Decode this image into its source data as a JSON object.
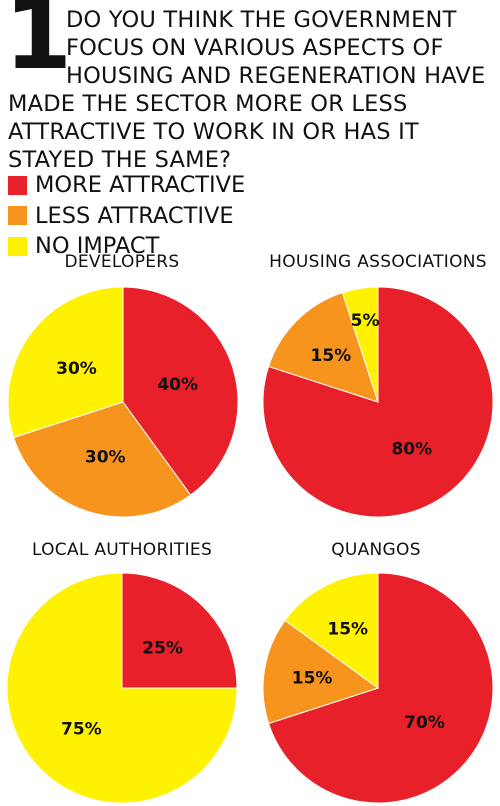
{
  "number": "1",
  "question_lines": [
    "DO YOU THINK THE GOVERNMENT",
    "FOCUS ON VARIOUS ASPECTS OF",
    "HOUSING AND REGENERATION HAVE",
    "MADE THE SECTOR MORE OR LESS",
    "ATTRACTIVE TO WORK IN OR HAS IT",
    "STAYED THE SAME?"
  ],
  "legend": [
    {
      "label": "MORE ATTRACTIVE",
      "color": "#e8202a"
    },
    {
      "label": "LESS ATTRACTIVE",
      "color": "#f7941d"
    },
    {
      "label": "NO IMPACT",
      "color": "#fff200"
    }
  ],
  "chart_data": [
    {
      "type": "pie",
      "title": "DEVELOPERS",
      "slices": [
        {
          "name": "MORE ATTRACTIVE",
          "value": 40,
          "label": "40%",
          "color": "#e8202a"
        },
        {
          "name": "LESS ATTRACTIVE",
          "value": 30,
          "label": "30%",
          "color": "#f7941d"
        },
        {
          "name": "NO IMPACT",
          "value": 30,
          "label": "30%",
          "color": "#fff200"
        }
      ]
    },
    {
      "type": "pie",
      "title": "HOUSING ASSOCIATIONS",
      "slices": [
        {
          "name": "MORE ATTRACTIVE",
          "value": 80,
          "label": "80%",
          "color": "#e8202a"
        },
        {
          "name": "LESS ATTRACTIVE",
          "value": 15,
          "label": "15%",
          "color": "#f7941d"
        },
        {
          "name": "NO IMPACT",
          "value": 5,
          "label": "5%",
          "color": "#fff200"
        }
      ]
    },
    {
      "type": "pie",
      "title": "LOCAL AUTHORITIES",
      "slices": [
        {
          "name": "MORE ATTRACTIVE",
          "value": 25,
          "label": "25%",
          "color": "#e8202a"
        },
        {
          "name": "NO IMPACT",
          "value": 75,
          "label": "75%",
          "color": "#fff200"
        }
      ]
    },
    {
      "type": "pie",
      "title": "QUANGOS",
      "slices": [
        {
          "name": "MORE ATTRACTIVE",
          "value": 70,
          "label": "70%",
          "color": "#e8202a"
        },
        {
          "name": "LESS ATTRACTIVE",
          "value": 15,
          "label": "15%",
          "color": "#f7941d"
        },
        {
          "name": "NO IMPACT",
          "value": 15,
          "label": "15%",
          "color": "#fff200"
        }
      ]
    }
  ]
}
